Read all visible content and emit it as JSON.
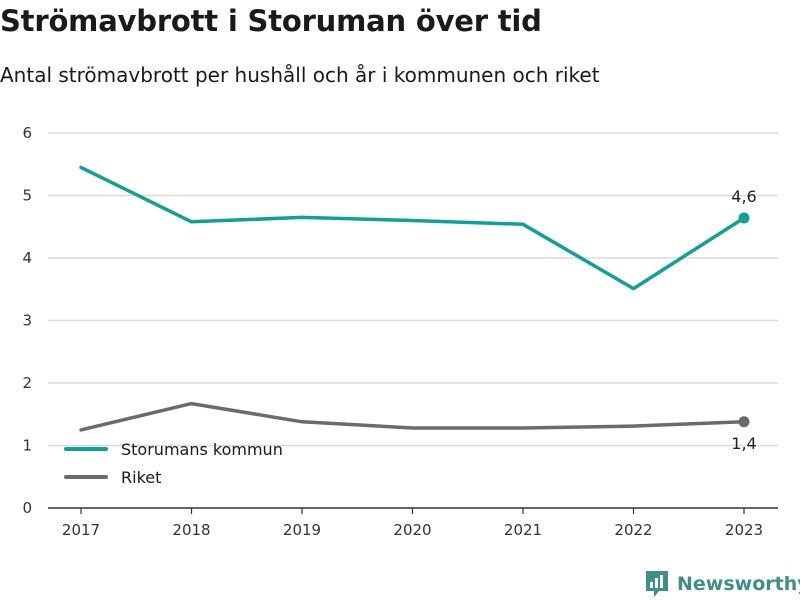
{
  "title": "Strömavbrott i Storuman över tid",
  "subtitle": "Antal strömavbrott per hushåll och år i kommunen och riket",
  "brand": {
    "name": "Newsworthy",
    "color": "#3e8f86"
  },
  "chart_data": {
    "type": "line",
    "x": [
      "2017",
      "2018",
      "2019",
      "2020",
      "2021",
      "2022",
      "2023"
    ],
    "ylim": [
      0,
      6
    ],
    "yticks": [
      0,
      1,
      2,
      3,
      4,
      5,
      6
    ],
    "grid": true,
    "legend_position": "bottom-left",
    "series": [
      {
        "name": "Storumans kommun",
        "color": "#0fa294",
        "values": [
          5.45,
          4.58,
          4.65,
          4.6,
          4.54,
          3.51,
          4.64
        ],
        "end_label": "4,6",
        "end_label_position": "above"
      },
      {
        "name": "Riket",
        "color": "#6b6a70",
        "values": [
          1.25,
          1.67,
          1.38,
          1.28,
          1.28,
          1.31,
          1.38
        ],
        "end_label": "1,4",
        "end_label_position": "below"
      }
    ]
  }
}
